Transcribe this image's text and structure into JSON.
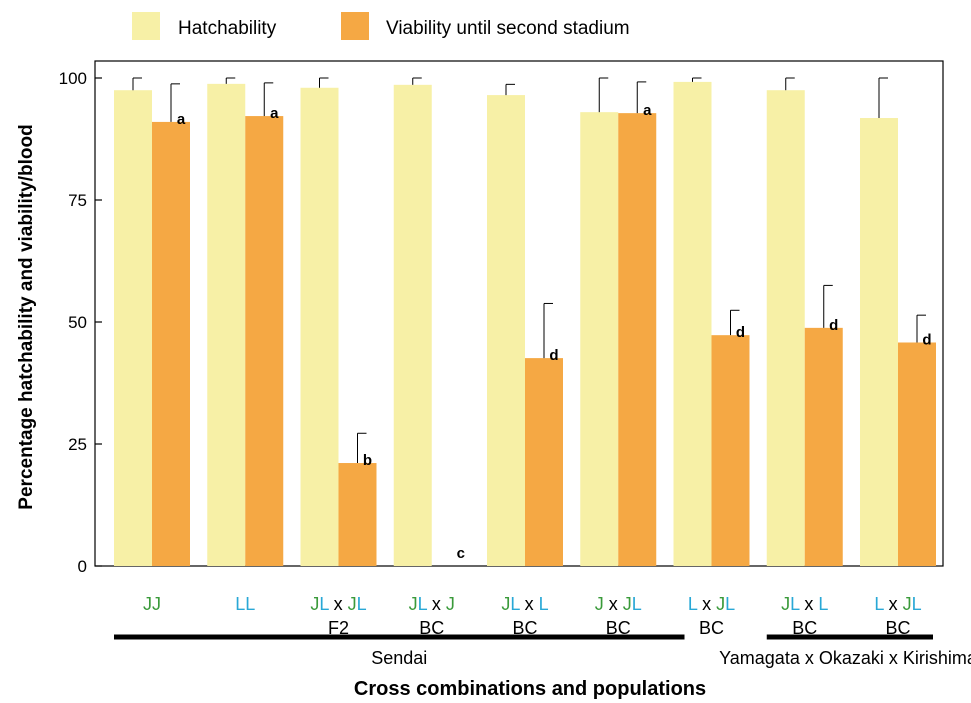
{
  "chart_data": {
    "type": "bar",
    "ylabel": "Percentage hatchability and viability/blood",
    "xlabel": "Cross combinations and populations",
    "ylim": [
      0,
      100
    ],
    "yticks": [
      0,
      25,
      50,
      75,
      100
    ],
    "grid": false,
    "legend_position": "top-left",
    "colors": {
      "Hatchability": "#f7f0a6",
      "Viability until second stadium": "#f5a844",
      "J": "#3a9a3a",
      "L": "#29a8d6",
      "text": "#000000"
    },
    "categories": [
      {
        "line1": [
          {
            "t": "J",
            "c": "J"
          },
          {
            "t": "J",
            "c": "J"
          }
        ],
        "line2": ""
      },
      {
        "line1": [
          {
            "t": "L",
            "c": "L"
          },
          {
            "t": "L",
            "c": "L"
          }
        ],
        "line2": ""
      },
      {
        "line1": [
          {
            "t": "J",
            "c": "J"
          },
          {
            "t": "L",
            "c": "L"
          },
          {
            "t": " x ",
            "c": "text"
          },
          {
            "t": "J",
            "c": "J"
          },
          {
            "t": "L",
            "c": "L"
          }
        ],
        "line2": "F2"
      },
      {
        "line1": [
          {
            "t": "J",
            "c": "J"
          },
          {
            "t": "L",
            "c": "L"
          },
          {
            "t": " x ",
            "c": "text"
          },
          {
            "t": "J",
            "c": "J"
          }
        ],
        "line2": "BC"
      },
      {
        "line1": [
          {
            "t": "J",
            "c": "J"
          },
          {
            "t": "L",
            "c": "L"
          },
          {
            "t": " x ",
            "c": "text"
          },
          {
            "t": "L",
            "c": "L"
          }
        ],
        "line2": "BC"
      },
      {
        "line1": [
          {
            "t": "J",
            "c": "J"
          },
          {
            "t": " x ",
            "c": "text"
          },
          {
            "t": "J",
            "c": "J"
          },
          {
            "t": "L",
            "c": "L"
          }
        ],
        "line2": "BC"
      },
      {
        "line1": [
          {
            "t": "L",
            "c": "L"
          },
          {
            "t": " x ",
            "c": "text"
          },
          {
            "t": "J",
            "c": "J"
          },
          {
            "t": "L",
            "c": "L"
          }
        ],
        "line2": "BC"
      },
      {
        "line1": [
          {
            "t": "J",
            "c": "J"
          },
          {
            "t": "L",
            "c": "L"
          },
          {
            "t": " x ",
            "c": "text"
          },
          {
            "t": "L",
            "c": "L"
          }
        ],
        "line2": "BC"
      },
      {
        "line1": [
          {
            "t": "L",
            "c": "L"
          },
          {
            "t": " x ",
            "c": "text"
          },
          {
            "t": "J",
            "c": "J"
          },
          {
            "t": "L",
            "c": "L"
          }
        ],
        "line2": "BC"
      }
    ],
    "series": [
      {
        "name": "Hatchability",
        "values": [
          97.5,
          98.8,
          98.0,
          98.6,
          96.5,
          93.0,
          99.2,
          97.5,
          91.8
        ],
        "error": [
          2.5,
          1.2,
          2.0,
          1.4,
          2.2,
          7.0,
          0.8,
          2.5,
          8.2
        ]
      },
      {
        "name": "Viability until second stadium",
        "values": [
          91.0,
          92.2,
          21.1,
          0.0,
          42.6,
          92.8,
          47.3,
          48.8,
          45.8
        ],
        "error": [
          7.8,
          6.8,
          6.1,
          0.0,
          11.2,
          6.4,
          5.1,
          8.7,
          5.6
        ],
        "significance": [
          "a",
          "a",
          "b",
          "c",
          "d",
          "a",
          "d",
          "d",
          "d"
        ]
      }
    ],
    "populations": [
      {
        "label": "Sendai",
        "from": 0,
        "to": 6
      },
      {
        "label": "Yamagata x Okazaki x Kirishima",
        "from": 7,
        "to": 8
      }
    ]
  }
}
